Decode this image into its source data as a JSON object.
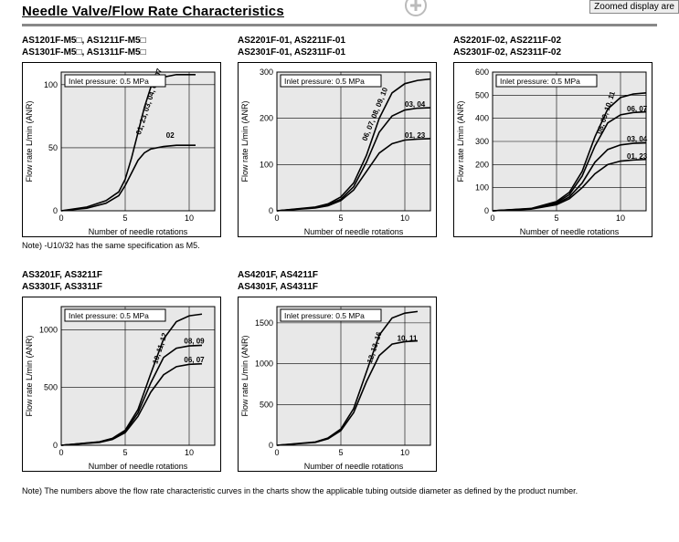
{
  "header": {
    "title": "Needle Valve/Flow Rate Characteristics",
    "zoom_button": "Zoomed display are"
  },
  "common": {
    "inlet_pressure_label": "Inlet pressure: 0.5 MPa",
    "x_axis_label": "Number of needle rotations",
    "y_axis_label": "Flow rate L/min (ANR)"
  },
  "note1": "Note) -U10/32 has the same specification as M5.",
  "note2": "Note) The numbers above the flow rate characteristic curves in the charts show the applicable tubing outside diameter as defined by the product number.",
  "charts": [
    {
      "id": "c1",
      "models": "AS1201F-M5□, AS1211F-M5□\nAS1301F-M5□, AS1311F-M5□",
      "x_ticks": [
        0,
        5,
        10
      ],
      "y_ticks": [
        0,
        50,
        100
      ],
      "y_max": 110,
      "curve_labels": [
        {
          "text": "01, 23, 03, 04, 06, 07",
          "x": 6.2,
          "y": 60,
          "rot": -72
        },
        {
          "text": "02",
          "x": 8.2,
          "y": 58,
          "rot": 0
        }
      ],
      "curves": [
        [
          [
            0,
            0
          ],
          [
            2,
            3
          ],
          [
            3.5,
            8
          ],
          [
            4.5,
            15
          ],
          [
            5,
            25
          ],
          [
            5.5,
            42
          ],
          [
            6,
            62
          ],
          [
            6.5,
            82
          ],
          [
            7,
            98
          ],
          [
            8,
            106
          ],
          [
            9,
            108
          ],
          [
            10,
            108
          ],
          [
            10.5,
            108
          ]
        ],
        [
          [
            0,
            0
          ],
          [
            2,
            2
          ],
          [
            3.5,
            6
          ],
          [
            4.5,
            12
          ],
          [
            5,
            20
          ],
          [
            5.5,
            30
          ],
          [
            6,
            40
          ],
          [
            6.5,
            46
          ],
          [
            7,
            49
          ],
          [
            8,
            51
          ],
          [
            9,
            52
          ],
          [
            10,
            52
          ],
          [
            10.5,
            52
          ]
        ]
      ]
    },
    {
      "id": "c2",
      "models": "AS2201F-01, AS2211F-01\nAS2301F-01, AS2311F-01",
      "x_ticks": [
        0,
        5,
        10
      ],
      "y_ticks": [
        0,
        100,
        200,
        300
      ],
      "y_max": 300,
      "curve_labels": [
        {
          "text": "06, 07, 08, 09, 10",
          "x": 7.0,
          "y": 150,
          "rot": -68
        },
        {
          "text": "03, 04",
          "x": 10.0,
          "y": 225,
          "rot": 0
        },
        {
          "text": "01, 23",
          "x": 10.0,
          "y": 158,
          "rot": 0
        }
      ],
      "curves": [
        [
          [
            0,
            0
          ],
          [
            3,
            8
          ],
          [
            4,
            15
          ],
          [
            5,
            30
          ],
          [
            6,
            60
          ],
          [
            7,
            120
          ],
          [
            8,
            200
          ],
          [
            9,
            255
          ],
          [
            10,
            275
          ],
          [
            11,
            282
          ],
          [
            12,
            285
          ]
        ],
        [
          [
            0,
            0
          ],
          [
            3,
            7
          ],
          [
            4,
            13
          ],
          [
            5,
            25
          ],
          [
            6,
            52
          ],
          [
            7,
            105
          ],
          [
            8,
            170
          ],
          [
            9,
            205
          ],
          [
            10,
            218
          ],
          [
            11,
            222
          ],
          [
            12,
            223
          ]
        ],
        [
          [
            0,
            0
          ],
          [
            3,
            6
          ],
          [
            4,
            11
          ],
          [
            5,
            22
          ],
          [
            6,
            45
          ],
          [
            7,
            85
          ],
          [
            8,
            125
          ],
          [
            9,
            145
          ],
          [
            10,
            153
          ],
          [
            11,
            155
          ],
          [
            12,
            156
          ]
        ]
      ]
    },
    {
      "id": "c3",
      "models": "AS2201F-02, AS2211F-02\nAS2301F-02, AS2311F-02",
      "x_ticks": [
        0,
        5,
        10
      ],
      "y_ticks": [
        0,
        100,
        200,
        300,
        400,
        500,
        600
      ],
      "y_max": 600,
      "curve_labels": [
        {
          "text": "08, 09, 10, 11",
          "x": 8.5,
          "y": 330,
          "rot": -72
        },
        {
          "text": "06, 07",
          "x": 10.5,
          "y": 430,
          "rot": 0
        },
        {
          "text": "03, 04",
          "x": 10.5,
          "y": 300,
          "rot": 0
        },
        {
          "text": "01, 23",
          "x": 10.5,
          "y": 225,
          "rot": 0
        }
      ],
      "curves": [
        [
          [
            0,
            0
          ],
          [
            3,
            10
          ],
          [
            5,
            40
          ],
          [
            6,
            80
          ],
          [
            7,
            170
          ],
          [
            8,
            320
          ],
          [
            9,
            440
          ],
          [
            10,
            490
          ],
          [
            11,
            505
          ],
          [
            12,
            510
          ]
        ],
        [
          [
            0,
            0
          ],
          [
            3,
            9
          ],
          [
            5,
            35
          ],
          [
            6,
            70
          ],
          [
            7,
            150
          ],
          [
            8,
            280
          ],
          [
            9,
            380
          ],
          [
            10,
            415
          ],
          [
            11,
            425
          ],
          [
            12,
            428
          ]
        ],
        [
          [
            0,
            0
          ],
          [
            3,
            8
          ],
          [
            5,
            30
          ],
          [
            6,
            60
          ],
          [
            7,
            120
          ],
          [
            8,
            210
          ],
          [
            9,
            265
          ],
          [
            10,
            285
          ],
          [
            11,
            292
          ],
          [
            12,
            294
          ]
        ],
        [
          [
            0,
            0
          ],
          [
            3,
            7
          ],
          [
            5,
            26
          ],
          [
            6,
            52
          ],
          [
            7,
            100
          ],
          [
            8,
            160
          ],
          [
            9,
            200
          ],
          [
            10,
            215
          ],
          [
            11,
            220
          ],
          [
            12,
            222
          ]
        ]
      ]
    },
    {
      "id": "c4",
      "models": "AS3201F, AS3211F\nAS3301F, AS3311F",
      "x_ticks": [
        0,
        5,
        10
      ],
      "y_ticks": [
        0,
        500,
        1000
      ],
      "y_max": 1200,
      "curve_labels": [
        {
          "text": "10, 11, 12",
          "x": 7.5,
          "y": 700,
          "rot": -72
        },
        {
          "text": "08, 09",
          "x": 9.6,
          "y": 880,
          "rot": 0
        },
        {
          "text": "06, 07",
          "x": 9.6,
          "y": 720,
          "rot": 0
        }
      ],
      "curves": [
        [
          [
            0,
            0
          ],
          [
            3,
            30
          ],
          [
            4,
            60
          ],
          [
            5,
            130
          ],
          [
            6,
            310
          ],
          [
            7,
            620
          ],
          [
            8,
            920
          ],
          [
            9,
            1070
          ],
          [
            10,
            1120
          ],
          [
            11,
            1135
          ]
        ],
        [
          [
            0,
            0
          ],
          [
            3,
            28
          ],
          [
            4,
            55
          ],
          [
            5,
            120
          ],
          [
            6,
            280
          ],
          [
            7,
            540
          ],
          [
            8,
            760
          ],
          [
            9,
            840
          ],
          [
            10,
            860
          ],
          [
            11,
            865
          ]
        ],
        [
          [
            0,
            0
          ],
          [
            3,
            25
          ],
          [
            4,
            50
          ],
          [
            5,
            110
          ],
          [
            6,
            250
          ],
          [
            7,
            460
          ],
          [
            8,
            610
          ],
          [
            9,
            680
          ],
          [
            10,
            700
          ],
          [
            11,
            705
          ]
        ]
      ]
    },
    {
      "id": "c5",
      "models": "AS4201F, AS4211F\nAS4301F, AS4311F",
      "x_ticks": [
        0,
        5,
        10
      ],
      "y_ticks": [
        0,
        500,
        1000,
        1500
      ],
      "y_max": 1700,
      "curve_labels": [
        {
          "text": "12, 13, 16",
          "x": 7.4,
          "y": 1000,
          "rot": -72
        },
        {
          "text": "10, 11",
          "x": 9.4,
          "y": 1280,
          "rot": 0
        }
      ],
      "curves": [
        [
          [
            0,
            0
          ],
          [
            3,
            40
          ],
          [
            4,
            90
          ],
          [
            5,
            200
          ],
          [
            6,
            450
          ],
          [
            7,
            900
          ],
          [
            8,
            1350
          ],
          [
            9,
            1560
          ],
          [
            10,
            1620
          ],
          [
            11,
            1640
          ]
        ],
        [
          [
            0,
            0
          ],
          [
            3,
            35
          ],
          [
            4,
            80
          ],
          [
            5,
            180
          ],
          [
            6,
            400
          ],
          [
            7,
            780
          ],
          [
            8,
            1100
          ],
          [
            9,
            1240
          ],
          [
            10,
            1270
          ],
          [
            11,
            1280
          ]
        ]
      ]
    }
  ],
  "chart_style": {
    "plot_bg": "#e8e8e8",
    "border": "#000000",
    "grid": "#000000",
    "curve_color": "#000000",
    "curve_width": 1.6,
    "tick_font": 9,
    "axis_label_font": 9,
    "curve_label_font": 8,
    "inlet_box_bg": "#ffffff",
    "inlet_box_border": "#000000"
  }
}
